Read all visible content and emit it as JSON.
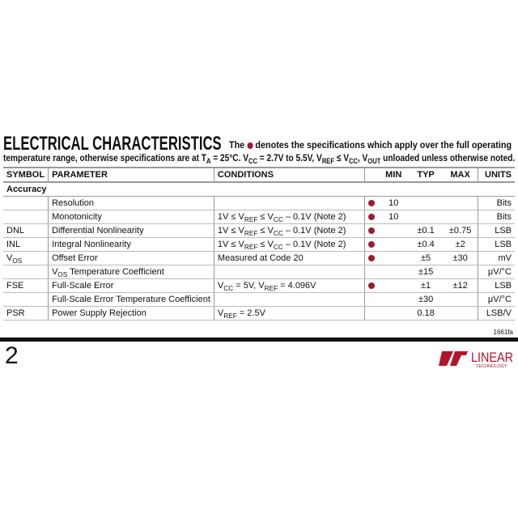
{
  "header": {
    "title": "ELECTRICAL CHARACTERISTICS",
    "intro_a": "The",
    "intro_b": "denotes the specifications which apply over the full operating",
    "intro_line2": [
      {
        "t": "temperature range, otherwise specifications are at T"
      },
      {
        "t": "A",
        "sub": true
      },
      {
        "t": " = 25°C. V"
      },
      {
        "t": "CC",
        "sub": true
      },
      {
        "t": " = 2.7V to 5.5V, V"
      },
      {
        "t": "REF",
        "sub": true
      },
      {
        "t": " ≤ V"
      },
      {
        "t": "CC",
        "sub": true
      },
      {
        "t": ", V"
      },
      {
        "t": "OUT",
        "sub": true
      },
      {
        "t": " unloaded unless otherwise noted."
      }
    ]
  },
  "table": {
    "columns": [
      "SYMBOL",
      "PARAMETER",
      "CONDITIONS",
      "",
      "MIN",
      "TYP",
      "MAX",
      "UNITS"
    ],
    "group": "Accuracy",
    "rows": [
      {
        "symbol": [],
        "parameter": [
          {
            "t": "Resolution"
          }
        ],
        "conditions": [],
        "dot": true,
        "min": "10",
        "typ": "",
        "max": "",
        "units": "Bits"
      },
      {
        "symbol": [],
        "parameter": [
          {
            "t": "Monotonicity"
          }
        ],
        "conditions": [
          {
            "t": "1V ≤ V"
          },
          {
            "t": "REF",
            "sub": true
          },
          {
            "t": " ≤ V"
          },
          {
            "t": "CC",
            "sub": true
          },
          {
            "t": " – 0.1V (Note 2)"
          }
        ],
        "dot": true,
        "min": "10",
        "typ": "",
        "max": "",
        "units": "Bits"
      },
      {
        "symbol": [
          {
            "t": "DNL"
          }
        ],
        "parameter": [
          {
            "t": "Differential Nonlinearity"
          }
        ],
        "conditions": [
          {
            "t": "1V ≤ V"
          },
          {
            "t": "REF",
            "sub": true
          },
          {
            "t": " ≤ V"
          },
          {
            "t": "CC",
            "sub": true
          },
          {
            "t": " – 0.1V (Note 2)"
          }
        ],
        "dot": true,
        "min": "",
        "typ": "±0.1",
        "max": "±0.75",
        "units": "LSB"
      },
      {
        "symbol": [
          {
            "t": "INL"
          }
        ],
        "parameter": [
          {
            "t": "Integral Nonlinearity"
          }
        ],
        "conditions": [
          {
            "t": "1V ≤ V"
          },
          {
            "t": "REF",
            "sub": true
          },
          {
            "t": " ≤ V"
          },
          {
            "t": "CC",
            "sub": true
          },
          {
            "t": " – 0.1V (Note 2)"
          }
        ],
        "dot": true,
        "min": "",
        "typ": "±0.4",
        "max": "±2",
        "units": "LSB"
      },
      {
        "symbol": [
          {
            "t": "V"
          },
          {
            "t": "OS",
            "sub": true
          }
        ],
        "parameter": [
          {
            "t": "Offset Error"
          }
        ],
        "conditions": [
          {
            "t": "Measured at Code 20"
          }
        ],
        "dot": true,
        "min": "",
        "typ": "±5",
        "max": "±30",
        "units": "mV"
      },
      {
        "symbol": [],
        "parameter": [
          {
            "t": "V"
          },
          {
            "t": "OS",
            "sub": true
          },
          {
            "t": " Temperature Coefficient"
          }
        ],
        "conditions": [],
        "dot": false,
        "min": "",
        "typ": "±15",
        "max": "",
        "units": "μV/°C"
      },
      {
        "symbol": [
          {
            "t": "FSE"
          }
        ],
        "parameter": [
          {
            "t": "Full-Scale Error"
          }
        ],
        "conditions": [
          {
            "t": "V"
          },
          {
            "t": "CC",
            "sub": true
          },
          {
            "t": " = 5V, V"
          },
          {
            "t": "REF",
            "sub": true
          },
          {
            "t": " = 4.096V"
          }
        ],
        "dot": true,
        "min": "",
        "typ": "±1",
        "max": "±12",
        "units": "LSB"
      },
      {
        "symbol": [],
        "parameter": [
          {
            "t": "Full-Scale Error Temperature Coefficient"
          }
        ],
        "conditions": [],
        "dot": false,
        "min": "",
        "typ": "±30",
        "max": "",
        "units": "μV/°C"
      },
      {
        "symbol": [
          {
            "t": "PSR"
          }
        ],
        "parameter": [
          {
            "t": "Power Supply Rejection"
          }
        ],
        "conditions": [
          {
            "t": "V"
          },
          {
            "t": "REF",
            "sub": true
          },
          {
            "t": " = 2.5V"
          }
        ],
        "dot": false,
        "min": "",
        "typ": "0.18",
        "max": "",
        "units": "LSB/V"
      }
    ]
  },
  "footer": {
    "doc_code": "1661fa",
    "page_number": "2",
    "logo_text": "LINEAR TECHNOLOGY"
  },
  "colors": {
    "bullet": "#9b1b30",
    "logo": "#b0162c"
  }
}
